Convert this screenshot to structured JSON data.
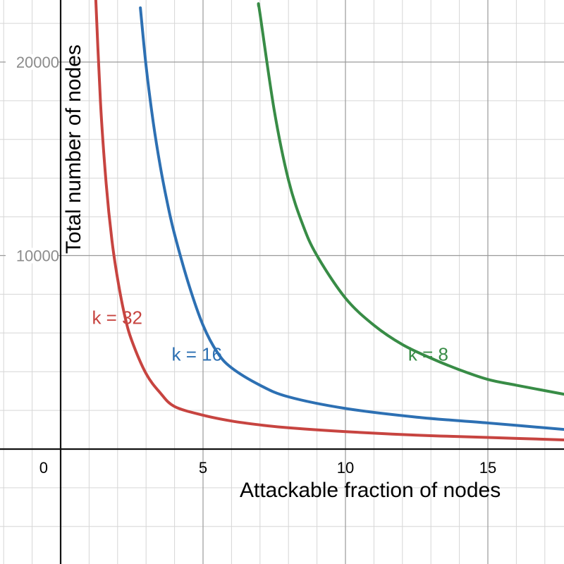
{
  "chart_data": {
    "type": "line",
    "xlabel": "Attackable fraction of nodes",
    "ylabel": "Total number of nodes",
    "xlim": [
      -2.1,
      17.8
    ],
    "ylim": [
      -5800,
      23000
    ],
    "grid": true,
    "x_ticks": [
      {
        "value": 0,
        "label": "0"
      },
      {
        "value": 5,
        "label": "5"
      },
      {
        "value": 10,
        "label": "10"
      },
      {
        "value": 15,
        "label": "15"
      }
    ],
    "y_ticks": [
      {
        "value": 10000,
        "label": "10000"
      },
      {
        "value": 20000,
        "label": "20000"
      }
    ],
    "series": [
      {
        "name": "k = 32",
        "color": "#c74440",
        "label_at": [
          1.1,
          6800
        ],
        "x": [
          1.2,
          1.4,
          1.6,
          1.8,
          2,
          2.25,
          2.5,
          3,
          3.5,
          4,
          5,
          6,
          7,
          8,
          10,
          12.5,
          15,
          17.8
        ],
        "y": [
          24400,
          17900,
          13700,
          10800,
          8800,
          6900,
          5600,
          3900,
          2900,
          2200,
          1750,
          1450,
          1250,
          1100,
          900,
          720,
          600,
          470
        ]
      },
      {
        "name": "k = 16",
        "color": "#2d70b3",
        "label_at": [
          3.9,
          4900
        ],
        "x": [
          2.8,
          3,
          3.25,
          3.5,
          3.75,
          4,
          4.5,
          5,
          5.5,
          6,
          7,
          8,
          10,
          12.5,
          15,
          17.8
        ],
        "y": [
          22800,
          19800,
          16900,
          14600,
          12700,
          11100,
          8500,
          6400,
          5000,
          4200,
          3300,
          2700,
          2100,
          1650,
          1350,
          1000
        ]
      },
      {
        "name": "k = 8",
        "color": "#388c46",
        "label_at": [
          12.2,
          4900
        ],
        "x": [
          6.95,
          7,
          7.5,
          8,
          8.5,
          9,
          10,
          11,
          12,
          13,
          14,
          15,
          16,
          17.8
        ],
        "y": [
          22900,
          22500,
          17500,
          13900,
          11600,
          10000,
          7800,
          6400,
          5400,
          4700,
          4100,
          3600,
          3300,
          2800
        ]
      }
    ]
  }
}
